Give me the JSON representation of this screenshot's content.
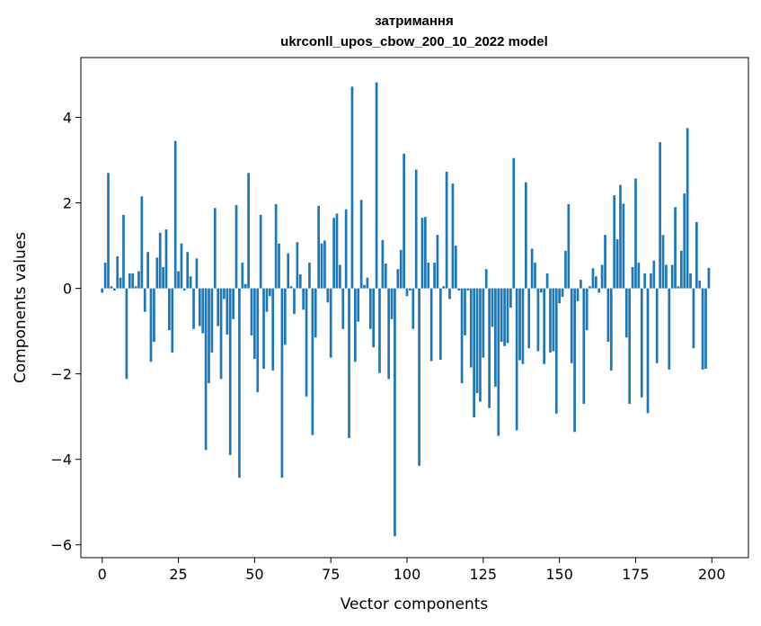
{
  "chart_data": {
    "type": "bar",
    "title": "затримання",
    "subtitle": "ukrconll_upos_cbow_200_10_2022 model",
    "xlabel": "Vector components",
    "ylabel": "Components values",
    "xlim": [
      -7,
      212
    ],
    "ylim": [
      -6.3,
      5.4
    ],
    "xticks": [
      0,
      25,
      50,
      75,
      100,
      125,
      150,
      175,
      200
    ],
    "yticks": [
      -6,
      -4,
      -2,
      0,
      2,
      4
    ],
    "ytick_labels": [
      "−6",
      "−4",
      "−2",
      "0",
      "2",
      "4"
    ],
    "bar_color": "#1f77b4",
    "grid": false,
    "legend": "none",
    "x": [
      0,
      1,
      2,
      3,
      4,
      5,
      6,
      7,
      8,
      9,
      10,
      11,
      12,
      13,
      14,
      15,
      16,
      17,
      18,
      19,
      20,
      21,
      22,
      23,
      24,
      25,
      26,
      27,
      28,
      29,
      30,
      31,
      32,
      33,
      34,
      35,
      36,
      37,
      38,
      39,
      40,
      41,
      42,
      43,
      44,
      45,
      46,
      47,
      48,
      49,
      50,
      51,
      52,
      53,
      54,
      55,
      56,
      57,
      58,
      59,
      60,
      61,
      62,
      63,
      64,
      65,
      66,
      67,
      68,
      69,
      70,
      71,
      72,
      73,
      74,
      75,
      76,
      77,
      78,
      79,
      80,
      81,
      82,
      83,
      84,
      85,
      86,
      87,
      88,
      89,
      90,
      91,
      92,
      93,
      94,
      95,
      96,
      97,
      98,
      99,
      100,
      101,
      102,
      103,
      104,
      105,
      106,
      107,
      108,
      109,
      110,
      111,
      112,
      113,
      114,
      115,
      116,
      117,
      118,
      119,
      120,
      121,
      122,
      123,
      124,
      125,
      126,
      127,
      128,
      129,
      130,
      131,
      132,
      133,
      134,
      135,
      136,
      137,
      138,
      139,
      140,
      141,
      142,
      143,
      144,
      145,
      146,
      147,
      148,
      149,
      150,
      151,
      152,
      153,
      154,
      155,
      156,
      157,
      158,
      159,
      160,
      161,
      162,
      163,
      164,
      165,
      166,
      167,
      168,
      169,
      170,
      171,
      172,
      173,
      174,
      175,
      176,
      177,
      178,
      179,
      180,
      181,
      182,
      183,
      184,
      185,
      186,
      187,
      188,
      189,
      190,
      191,
      192,
      193,
      194,
      195,
      196,
      197,
      198,
      199
    ],
    "values": [
      -0.1,
      0.6,
      2.7,
      0.05,
      -0.05,
      0.75,
      0.25,
      1.72,
      -2.12,
      0.35,
      0.35,
      0.05,
      0.4,
      2.15,
      -0.55,
      0.85,
      -1.72,
      -1.25,
      0.72,
      1.3,
      0.5,
      1.38,
      -0.98,
      -1.5,
      3.45,
      0.4,
      1.05,
      -0.05,
      0.85,
      0.28,
      -0.95,
      0.7,
      -0.88,
      -1.05,
      -3.78,
      -2.22,
      -1.5,
      1.88,
      -0.88,
      -2.12,
      -0.25,
      -1.08,
      -3.9,
      -0.72,
      1.95,
      -4.43,
      0.6,
      0.1,
      2.7,
      -1.1,
      -1.65,
      -2.43,
      1.72,
      -1.88,
      -0.55,
      -0.18,
      -1.92,
      1.97,
      1.05,
      -4.43,
      -1.32,
      0.82,
      0.05,
      -0.6,
      1.08,
      0.33,
      -0.5,
      -2.53,
      0.6,
      -3.43,
      -1.15,
      1.93,
      1.05,
      1.12,
      -0.33,
      -1.62,
      1.65,
      1.75,
      0.55,
      -0.95,
      1.85,
      -3.5,
      4.72,
      -1.72,
      -0.78,
      2.07,
      0.08,
      0.25,
      -0.95,
      -1.38,
      4.82,
      -1.98,
      1.13,
      0.58,
      -2.12,
      -0.72,
      -5.8,
      0.45,
      0.9,
      3.15,
      -0.18,
      -0.05,
      -0.95,
      2.78,
      -4.15,
      1.65,
      1.67,
      0.6,
      -1.7,
      0.6,
      1.25,
      -1.67,
      0.05,
      2.73,
      -0.25,
      2.45,
      1.0,
      -0.05,
      -2.22,
      -1.1,
      -0.05,
      -1.85,
      -3.02,
      -2.45,
      -2.65,
      -1.62,
      0.45,
      -2.8,
      -0.9,
      -2.3,
      -3.45,
      -1.25,
      -1.35,
      -1.28,
      -0.45,
      3.05,
      -3.32,
      -1.68,
      -1.77,
      2.48,
      -1.4,
      0.93,
      0.6,
      -1.47,
      -0.1,
      -1.77,
      0.35,
      -1.5,
      -1.47,
      -2.93,
      -0.35,
      -0.2,
      0.88,
      1.97,
      -1.75,
      -3.36,
      -0.3,
      0.2,
      -2.7,
      -0.98,
      0.05,
      0.47,
      0.28,
      -0.1,
      0.55,
      1.25,
      -1.25,
      -1.92,
      2.18,
      1.15,
      2.42,
      1.98,
      -1.15,
      -2.7,
      0.5,
      2.57,
      0.6,
      -2.55,
      0.35,
      -2.92,
      0.35,
      0.65,
      -1.75,
      3.42,
      1.25,
      0.55,
      -1.9,
      0.55,
      1.9,
      0.05,
      0.88,
      2.22,
      3.75,
      0.35,
      -1.4,
      1.55,
      0.18,
      -1.9,
      -1.88,
      0.48
    ]
  }
}
